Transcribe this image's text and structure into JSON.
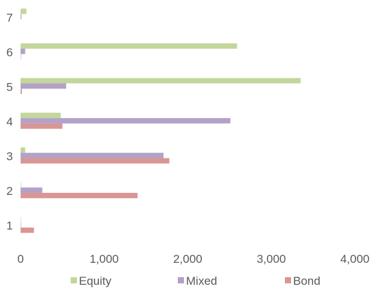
{
  "chart_data": {
    "type": "bar",
    "orientation": "horizontal",
    "categories": [
      "1",
      "2",
      "3",
      "4",
      "5",
      "6",
      "7"
    ],
    "series": [
      {
        "name": "Equity",
        "color": "#c3d69b",
        "values": [
          5,
          5,
          55,
          480,
          3350,
          2590,
          70
        ]
      },
      {
        "name": "Mixed",
        "color": "#b3a2c7",
        "values": [
          5,
          260,
          1710,
          2510,
          545,
          55,
          10
        ]
      },
      {
        "name": "Bond",
        "color": "#d99694",
        "values": [
          160,
          1400,
          1780,
          500,
          15,
          5,
          0
        ]
      }
    ],
    "xlim": [
      0,
      4000
    ],
    "x_ticks": [
      0,
      1000,
      2000,
      3000,
      4000
    ],
    "x_tick_labels": [
      "0",
      "1,000",
      "2,000",
      "3,000",
      "4,000"
    ],
    "title": "",
    "xlabel": "",
    "ylabel": "",
    "grid": false,
    "legend_position": "bottom"
  }
}
